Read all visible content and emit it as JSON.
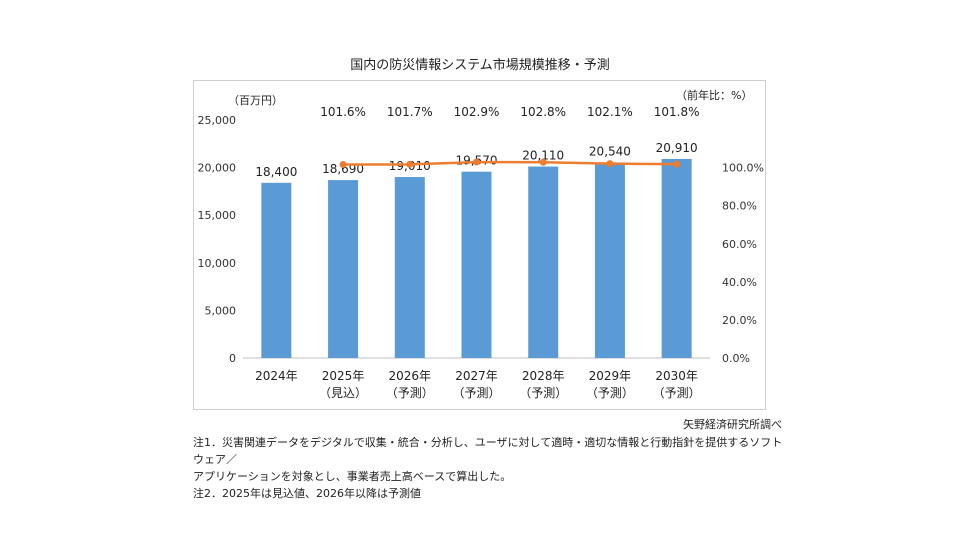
{
  "chart_data": {
    "type": "bar+line",
    "title": "国内の防災情報システム市場規模推移・予測",
    "y_left_unit": "（百万円）",
    "y_right_unit": "（前年比：%）",
    "categories": [
      [
        "2024年",
        ""
      ],
      [
        "2025年",
        "（見込）"
      ],
      [
        "2026年",
        "（予測）"
      ],
      [
        "2027年",
        "（予測）"
      ],
      [
        "2028年",
        "（予測）"
      ],
      [
        "2029年",
        "（予測）"
      ],
      [
        "2030年",
        "（予測）"
      ]
    ],
    "bars": {
      "values": [
        18400,
        18690,
        19010,
        19570,
        20110,
        20540,
        20910
      ],
      "labels": [
        "18,400",
        "18,690",
        "19,010",
        "19,570",
        "20,110",
        "20,540",
        "20,910"
      ],
      "color": "#5b9bd5"
    },
    "line": {
      "values": [
        null,
        101.6,
        101.7,
        102.9,
        102.8,
        102.1,
        101.8
      ],
      "labels": [
        "",
        "101.6%",
        "101.7%",
        "102.9%",
        "102.8%",
        "102.1%",
        "101.8%"
      ],
      "color": "#ed7d31"
    },
    "y_left": {
      "min": 0,
      "max": 25000,
      "ticks": [
        "0",
        "5,000",
        "10,000",
        "15,000",
        "20,000",
        "25,000"
      ]
    },
    "y_right": {
      "min": 0,
      "max": 125,
      "ticks": [
        "0.0%",
        "20.0%",
        "40.0%",
        "60.0%",
        "80.0%",
        "100.0%"
      ]
    }
  },
  "source": "矢野経済研究所調べ",
  "notes": [
    "注1．災害関連データをデジタルで収集・統合・分析し、ユーザに対して適時・適切な情報と行動指針を提供するソフトウェア／",
    "アプリケーションを対象とし、事業者売上高ベースで算出した。",
    "注2．2025年は見込値、2026年以降は予測値"
  ]
}
